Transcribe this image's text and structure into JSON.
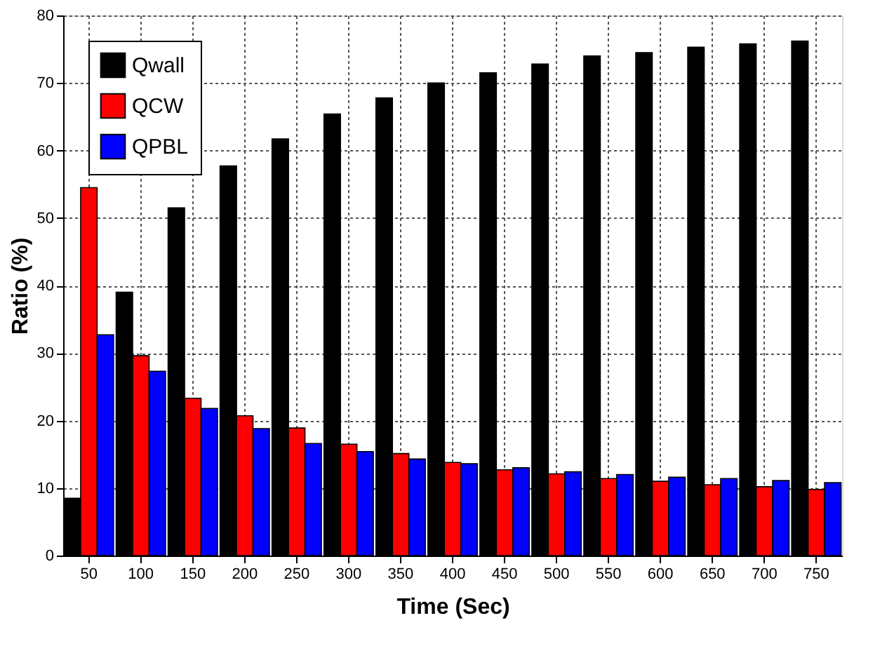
{
  "chart_data": {
    "type": "bar",
    "xlabel": "Time (Sec)",
    "ylabel": "Ratio (%)",
    "categories": [
      "50",
      "100",
      "150",
      "200",
      "250",
      "300",
      "350",
      "400",
      "450",
      "500",
      "550",
      "600",
      "650",
      "700",
      "750"
    ],
    "series": [
      {
        "name": "Qwall",
        "color": "#000000",
        "values": [
          8.5,
          39,
          51.5,
          57.7,
          61.7,
          65.4,
          67.8,
          70,
          71.5,
          72.8,
          74,
          74.5,
          75.3,
          75.8,
          76.2
        ]
      },
      {
        "name": "QCW",
        "color": "#ff0000",
        "values": [
          54.5,
          29.6,
          23.3,
          20.7,
          18.9,
          16.5,
          15.1,
          13.8,
          12.7,
          12.1,
          11.4,
          11,
          10.5,
          10.2,
          9.8
        ]
      },
      {
        "name": "QPBL",
        "color": "#0000ff",
        "values": [
          32.7,
          27.3,
          21.8,
          18.8,
          16.6,
          15.4,
          14.3,
          13.6,
          13.0,
          12.4,
          12,
          11.6,
          11.4,
          11.1,
          10.8
        ]
      }
    ],
    "ylim": [
      0,
      80
    ],
    "yticks": [
      0,
      10,
      20,
      30,
      40,
      50,
      60,
      70,
      80
    ],
    "grid": true,
    "legend": "top left"
  }
}
